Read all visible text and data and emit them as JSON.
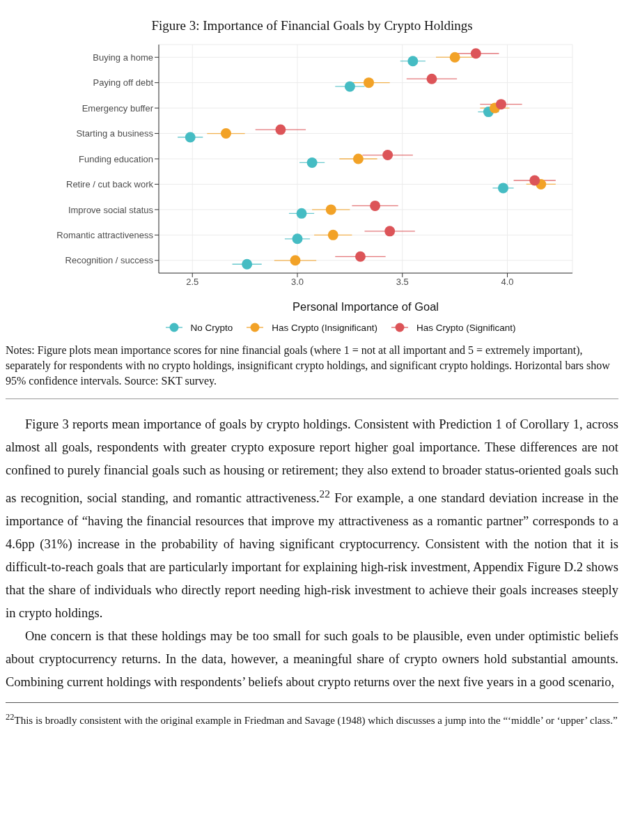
{
  "chart_data": {
    "type": "scatter",
    "title": "Figure 3: Importance of Financial Goals by Crypto Holdings",
    "xlabel": "Personal Importance of Goal",
    "categories": [
      "Buying a home",
      "Paying off debt",
      "Emergency buffer",
      "Starting a business",
      "Funding education",
      "Retire / cut back work",
      "Improve social status",
      "Romantic attractiveness",
      "Recognition / success"
    ],
    "series": [
      {
        "name": "No Crypto",
        "color": "#45bcc3",
        "values": [
          3.55,
          3.25,
          3.91,
          2.49,
          3.07,
          3.98,
          3.02,
          3.0,
          2.76
        ],
        "errors": [
          0.06,
          0.07,
          0.05,
          0.06,
          0.06,
          0.05,
          0.06,
          0.06,
          0.07
        ]
      },
      {
        "name": "Has Crypto (Insignificant)",
        "color": "#f2a227",
        "values": [
          3.75,
          3.34,
          3.94,
          2.66,
          3.29,
          4.16,
          3.16,
          3.17,
          2.99
        ],
        "errors": [
          0.09,
          0.1,
          0.07,
          0.09,
          0.09,
          0.07,
          0.09,
          0.09,
          0.1
        ]
      },
      {
        "name": "Has Crypto (Significant)",
        "color": "#dc5458",
        "values": [
          3.85,
          3.64,
          3.97,
          2.92,
          3.43,
          4.13,
          3.37,
          3.44,
          3.3
        ],
        "errors": [
          0.11,
          0.12,
          0.1,
          0.12,
          0.12,
          0.1,
          0.11,
          0.12,
          0.12
        ]
      }
    ],
    "xlim": [
      2.34,
      4.31
    ],
    "xticks": [
      {
        "value": 2.5,
        "label": "2.5"
      },
      {
        "value": 3,
        "label": "3.0"
      },
      {
        "value": 3.5,
        "label": "3.5"
      },
      {
        "value": 4,
        "label": "4.0"
      }
    ],
    "grid": true,
    "legend": "bottom",
    "marker": "circle",
    "orientation": "horizontal",
    "annotations": [
      "Notes: Figure plots mean importance scores for nine financial goals (where 1 = not at all important and 5 = extremely important), separately for respondents with no crypto holdings, insignificant crypto holdings, and significant crypto holdings. Horizontal bars show 95% confidence intervals. Source: SKT survey.",
      "Figure 3 reports mean importance of goals by crypto holdings. Consistent with Prediction 1 of Corollary 1, across almost all goals, respondents with greater crypto exposure report higher goal importance. These differences are not confined to purely financial goals such as housing or retirement; they also extend to broader status-oriented goals such as recognition, social standing, and romantic attractiveness.$^{22}$ For example, a one standard deviation increase in the importance of “having the financial resources that improve my attractiveness as a romantic partner” corresponds to a 4.6pp (31%) increase in the probability of having significant cryptocurrency. Consistent with the notion that it is difficult-to-reach goals that are particularly important for explaining high-risk investment, Appendix Figure D.2 shows that the share of individuals who directly report needing high-risk investment to achieve their goals increases steeply in crypto holdings.",
      "One concern is that these holdings may be too small for such goals to be plausible, even under optimistic beliefs about cryptocurrency returns. In the data, however, a meaningful share of crypto owners hold substantial amounts. Combining current holdings with respondents’ beliefs about crypto returns over the next five years in a good scenario,",
      "$^{22}$This is broadly consistent with the original example in Friedman and Savage (1948) which discusses a jump into the “‘middle’ or ‘upper’ class.”"
    ]
  }
}
